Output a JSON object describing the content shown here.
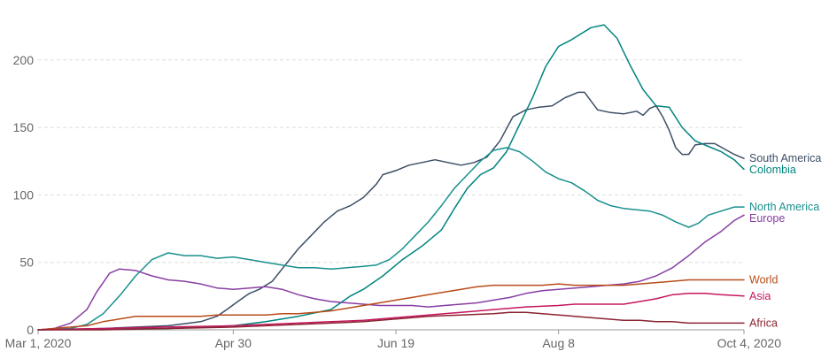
{
  "chart_data": {
    "type": "line",
    "title": "",
    "xlabel": "",
    "ylabel": "",
    "x_ticks": [
      {
        "day": 0,
        "label": "Mar 1, 2020"
      },
      {
        "day": 60,
        "label": "Apr 30"
      },
      {
        "day": 110,
        "label": "Jun 19"
      },
      {
        "day": 160,
        "label": "Aug 8"
      },
      {
        "day": 217,
        "label": "Oct 4, 2020"
      }
    ],
    "y_ticks": [
      0,
      50,
      100,
      150,
      200
    ],
    "xlim": [
      0,
      217
    ],
    "ylim": [
      0,
      230
    ],
    "grid": true,
    "legend": "right-inline-labels",
    "series": [
      {
        "name": "South America",
        "color": "#3c4e66",
        "points": [
          [
            0,
            0
          ],
          [
            20,
            1
          ],
          [
            40,
            3
          ],
          [
            50,
            6
          ],
          [
            55,
            10
          ],
          [
            58,
            15
          ],
          [
            62,
            22
          ],
          [
            65,
            27
          ],
          [
            68,
            30
          ],
          [
            72,
            36
          ],
          [
            76,
            48
          ],
          [
            80,
            60
          ],
          [
            84,
            70
          ],
          [
            88,
            80
          ],
          [
            92,
            88
          ],
          [
            96,
            92
          ],
          [
            100,
            98
          ],
          [
            104,
            108
          ],
          [
            106,
            115
          ],
          [
            110,
            118
          ],
          [
            114,
            122
          ],
          [
            118,
            124
          ],
          [
            122,
            126
          ],
          [
            126,
            124
          ],
          [
            130,
            122
          ],
          [
            134,
            124
          ],
          [
            138,
            128
          ],
          [
            142,
            140
          ],
          [
            146,
            158
          ],
          [
            150,
            163
          ],
          [
            154,
            165
          ],
          [
            158,
            166
          ],
          [
            162,
            172
          ],
          [
            166,
            176
          ],
          [
            168,
            176
          ],
          [
            172,
            163
          ],
          [
            176,
            161
          ],
          [
            180,
            160
          ],
          [
            184,
            162
          ],
          [
            186,
            159
          ],
          [
            188,
            164
          ],
          [
            190,
            166
          ],
          [
            192,
            158
          ],
          [
            194,
            148
          ],
          [
            196,
            135
          ],
          [
            198,
            130
          ],
          [
            200,
            130
          ],
          [
            202,
            137
          ],
          [
            205,
            138
          ],
          [
            208,
            138
          ],
          [
            211,
            134
          ],
          [
            214,
            130
          ],
          [
            217,
            127
          ]
        ]
      },
      {
        "name": "Colombia",
        "color": "#00847e",
        "points": [
          [
            0,
            0
          ],
          [
            40,
            1
          ],
          [
            60,
            3
          ],
          [
            70,
            6
          ],
          [
            80,
            10
          ],
          [
            90,
            15
          ],
          [
            96,
            25
          ],
          [
            100,
            30
          ],
          [
            106,
            40
          ],
          [
            112,
            52
          ],
          [
            118,
            62
          ],
          [
            124,
            74
          ],
          [
            128,
            90
          ],
          [
            132,
            105
          ],
          [
            136,
            115
          ],
          [
            140,
            120
          ],
          [
            144,
            132
          ],
          [
            148,
            152
          ],
          [
            152,
            172
          ],
          [
            156,
            195
          ],
          [
            160,
            210
          ],
          [
            164,
            215
          ],
          [
            166,
            218
          ],
          [
            170,
            224
          ],
          [
            174,
            226
          ],
          [
            178,
            216
          ],
          [
            182,
            196
          ],
          [
            186,
            178
          ],
          [
            190,
            166
          ],
          [
            194,
            165
          ],
          [
            198,
            150
          ],
          [
            202,
            140
          ],
          [
            206,
            136
          ],
          [
            210,
            132
          ],
          [
            214,
            126
          ],
          [
            217,
            119
          ]
        ]
      },
      {
        "name": "North America",
        "color": "#18908e",
        "points": [
          [
            0,
            0
          ],
          [
            10,
            1
          ],
          [
            15,
            4
          ],
          [
            20,
            12
          ],
          [
            25,
            25
          ],
          [
            30,
            40
          ],
          [
            35,
            52
          ],
          [
            40,
            57
          ],
          [
            45,
            55
          ],
          [
            50,
            55
          ],
          [
            55,
            53
          ],
          [
            60,
            54
          ],
          [
            65,
            52
          ],
          [
            70,
            50
          ],
          [
            75,
            48
          ],
          [
            80,
            46
          ],
          [
            85,
            46
          ],
          [
            90,
            45
          ],
          [
            95,
            46
          ],
          [
            100,
            47
          ],
          [
            104,
            48
          ],
          [
            108,
            52
          ],
          [
            112,
            60
          ],
          [
            116,
            70
          ],
          [
            120,
            80
          ],
          [
            124,
            92
          ],
          [
            128,
            105
          ],
          [
            132,
            115
          ],
          [
            136,
            125
          ],
          [
            140,
            133
          ],
          [
            144,
            135
          ],
          [
            148,
            132
          ],
          [
            152,
            125
          ],
          [
            156,
            117
          ],
          [
            160,
            112
          ],
          [
            164,
            109
          ],
          [
            168,
            103
          ],
          [
            172,
            96
          ],
          [
            176,
            92
          ],
          [
            180,
            90
          ],
          [
            184,
            89
          ],
          [
            188,
            88
          ],
          [
            192,
            85
          ],
          [
            196,
            80
          ],
          [
            200,
            76
          ],
          [
            203,
            79
          ],
          [
            206,
            85
          ],
          [
            210,
            88
          ],
          [
            214,
            91
          ],
          [
            217,
            91
          ]
        ]
      },
      {
        "name": "Europe",
        "color": "#883ea3",
        "points": [
          [
            0,
            0
          ],
          [
            5,
            1
          ],
          [
            10,
            5
          ],
          [
            15,
            15
          ],
          [
            18,
            28
          ],
          [
            22,
            42
          ],
          [
            25,
            45
          ],
          [
            30,
            44
          ],
          [
            35,
            40
          ],
          [
            40,
            37
          ],
          [
            45,
            36
          ],
          [
            50,
            34
          ],
          [
            55,
            31
          ],
          [
            60,
            30
          ],
          [
            65,
            31
          ],
          [
            70,
            32
          ],
          [
            75,
            30
          ],
          [
            80,
            26
          ],
          [
            85,
            23
          ],
          [
            90,
            21
          ],
          [
            95,
            20
          ],
          [
            100,
            19
          ],
          [
            105,
            18
          ],
          [
            110,
            18
          ],
          [
            115,
            18
          ],
          [
            120,
            17
          ],
          [
            125,
            18
          ],
          [
            130,
            19
          ],
          [
            135,
            20
          ],
          [
            140,
            22
          ],
          [
            145,
            24
          ],
          [
            150,
            27
          ],
          [
            155,
            29
          ],
          [
            160,
            30
          ],
          [
            165,
            31
          ],
          [
            170,
            32
          ],
          [
            175,
            33
          ],
          [
            180,
            34
          ],
          [
            185,
            36
          ],
          [
            190,
            40
          ],
          [
            195,
            46
          ],
          [
            200,
            55
          ],
          [
            205,
            65
          ],
          [
            210,
            73
          ],
          [
            214,
            81
          ],
          [
            217,
            85
          ]
        ]
      },
      {
        "name": "World",
        "color": "#b84c1a",
        "points": [
          [
            0,
            0
          ],
          [
            10,
            2
          ],
          [
            15,
            3
          ],
          [
            20,
            6
          ],
          [
            25,
            8
          ],
          [
            30,
            10
          ],
          [
            35,
            10
          ],
          [
            40,
            10
          ],
          [
            45,
            10
          ],
          [
            50,
            10
          ],
          [
            55,
            11
          ],
          [
            60,
            11
          ],
          [
            65,
            11
          ],
          [
            70,
            11
          ],
          [
            75,
            12
          ],
          [
            80,
            12
          ],
          [
            85,
            13
          ],
          [
            90,
            14
          ],
          [
            95,
            16
          ],
          [
            100,
            18
          ],
          [
            105,
            20
          ],
          [
            110,
            22
          ],
          [
            115,
            24
          ],
          [
            120,
            26
          ],
          [
            125,
            28
          ],
          [
            130,
            30
          ],
          [
            135,
            32
          ],
          [
            140,
            33
          ],
          [
            145,
            33
          ],
          [
            150,
            33
          ],
          [
            155,
            33
          ],
          [
            160,
            34
          ],
          [
            165,
            33
          ],
          [
            170,
            33
          ],
          [
            175,
            33
          ],
          [
            180,
            33
          ],
          [
            185,
            34
          ],
          [
            190,
            35
          ],
          [
            195,
            36
          ],
          [
            200,
            37
          ],
          [
            205,
            37
          ],
          [
            210,
            37
          ],
          [
            217,
            37
          ]
        ]
      },
      {
        "name": "Asia",
        "color": "#c4175e",
        "points": [
          [
            0,
            0
          ],
          [
            20,
            1
          ],
          [
            40,
            2
          ],
          [
            60,
            3
          ],
          [
            70,
            4
          ],
          [
            80,
            5
          ],
          [
            90,
            6
          ],
          [
            100,
            7
          ],
          [
            110,
            9
          ],
          [
            120,
            11
          ],
          [
            130,
            13
          ],
          [
            140,
            15
          ],
          [
            150,
            17
          ],
          [
            160,
            18
          ],
          [
            165,
            19
          ],
          [
            170,
            19
          ],
          [
            175,
            19
          ],
          [
            180,
            19
          ],
          [
            185,
            21
          ],
          [
            190,
            23
          ],
          [
            195,
            26
          ],
          [
            200,
            27
          ],
          [
            205,
            27
          ],
          [
            210,
            26
          ],
          [
            217,
            25
          ]
        ]
      },
      {
        "name": "Africa",
        "color": "#8b2332",
        "points": [
          [
            0,
            0
          ],
          [
            20,
            0
          ],
          [
            40,
            1
          ],
          [
            60,
            2
          ],
          [
            70,
            3
          ],
          [
            80,
            4
          ],
          [
            90,
            5
          ],
          [
            100,
            6
          ],
          [
            110,
            8
          ],
          [
            120,
            10
          ],
          [
            130,
            11
          ],
          [
            140,
            12
          ],
          [
            145,
            13
          ],
          [
            150,
            13
          ],
          [
            155,
            12
          ],
          [
            160,
            11
          ],
          [
            165,
            10
          ],
          [
            170,
            9
          ],
          [
            175,
            8
          ],
          [
            180,
            7
          ],
          [
            185,
            7
          ],
          [
            190,
            6
          ],
          [
            195,
            6
          ],
          [
            200,
            5
          ],
          [
            205,
            5
          ],
          [
            210,
            5
          ],
          [
            217,
            5
          ]
        ]
      }
    ]
  }
}
